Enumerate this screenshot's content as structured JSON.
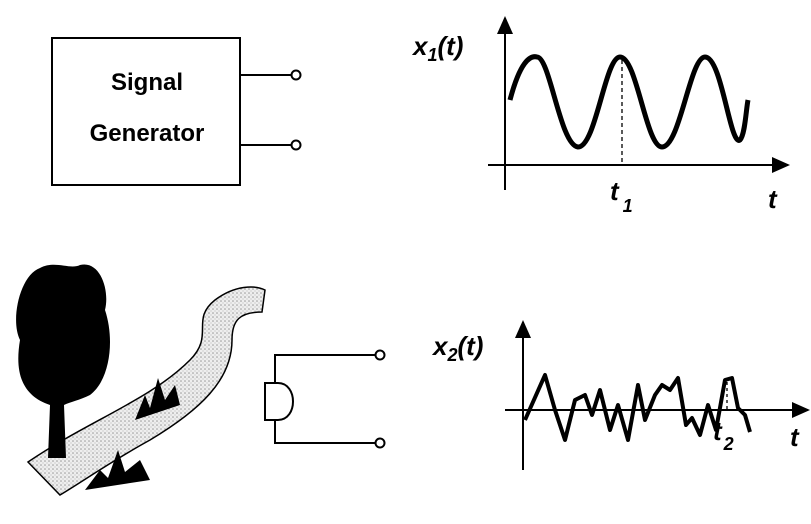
{
  "signal_generator": {
    "label_lines": [
      "Signal",
      "Generator"
    ]
  },
  "plot_1": {
    "y_label": {
      "main": "x",
      "sub": "1",
      "tail": "(t)"
    },
    "x_label": "t",
    "marker": {
      "main": "t",
      "sub": "1"
    }
  },
  "plot_2": {
    "y_label": {
      "main": "x",
      "sub": "2",
      "tail": "(t)"
    },
    "x_label": "t",
    "marker": {
      "main": "t",
      "sub": "2"
    }
  }
}
